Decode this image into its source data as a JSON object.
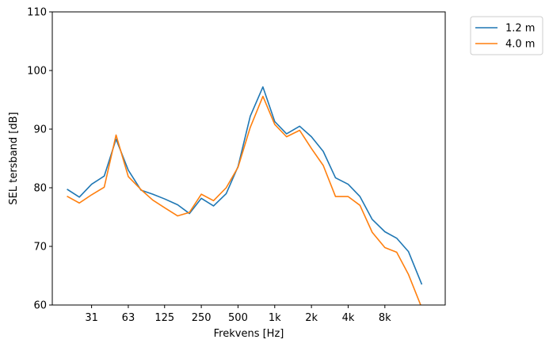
{
  "chart_data": {
    "type": "line",
    "title": "",
    "xlabel": "Frekvens [Hz]",
    "ylabel": "SEL tersband [dB]",
    "ylim": [
      60,
      110
    ],
    "yticks": [
      60,
      70,
      80,
      90,
      100,
      110
    ],
    "x_scale": "log",
    "xlim": [
      15.0,
      25000.0
    ],
    "xticks": [
      {
        "value": 31.5,
        "label": "31"
      },
      {
        "value": 63,
        "label": "63"
      },
      {
        "value": 125,
        "label": "125"
      },
      {
        "value": 250,
        "label": "250"
      },
      {
        "value": 500,
        "label": "500"
      },
      {
        "value": 1000,
        "label": "1k"
      },
      {
        "value": 2000,
        "label": "2k"
      },
      {
        "value": 4000,
        "label": "4k"
      },
      {
        "value": 8000,
        "label": "8k"
      }
    ],
    "x": [
      20,
      25,
      31.5,
      40,
      50,
      63,
      80,
      100,
      125,
      160,
      200,
      250,
      315,
      400,
      500,
      630,
      800,
      1000,
      1250,
      1600,
      2000,
      2500,
      3150,
      4000,
      5000,
      6300,
      8000,
      10000,
      12500,
      16000
    ],
    "series": [
      {
        "name": "1.2 m",
        "color": "#1f77b4",
        "values": [
          79.7,
          78.4,
          80.6,
          82.0,
          88.3,
          83.0,
          79.6,
          78.9,
          78.1,
          77.1,
          75.6,
          78.2,
          76.9,
          79.0,
          83.6,
          92.2,
          97.2,
          91.3,
          89.2,
          90.5,
          88.7,
          86.2,
          81.7,
          80.6,
          78.5,
          74.6,
          72.5,
          71.4,
          69.1,
          63.6
        ]
      },
      {
        "name": "4.0 m",
        "color": "#ff7f0e",
        "values": [
          78.5,
          77.4,
          78.8,
          80.1,
          89.0,
          81.9,
          79.7,
          77.9,
          76.6,
          75.2,
          75.8,
          78.9,
          77.8,
          80.0,
          83.5,
          90.3,
          95.6,
          90.8,
          88.7,
          89.8,
          86.7,
          83.8,
          78.5,
          78.5,
          77.0,
          72.4,
          69.8,
          69.0,
          65.2,
          59.6
        ]
      }
    ],
    "grid": false,
    "legend": "outside-top-right"
  }
}
